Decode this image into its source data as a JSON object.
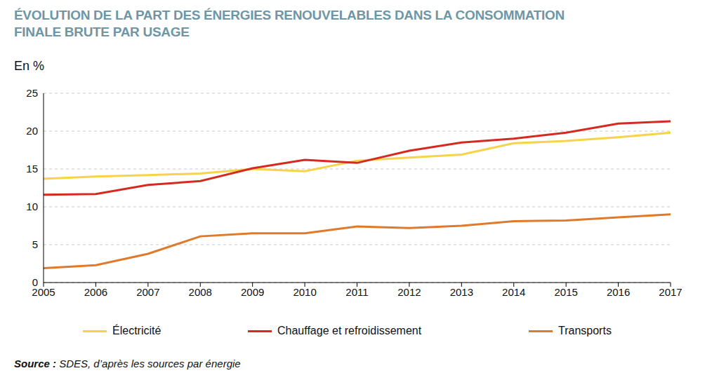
{
  "chart_data": {
    "type": "line",
    "title": "ÉVOLUTION DE LA PART DES ÉNERGIES RENOUVELABLES DANS LA CONSOMMATION FINALE BRUTE PAR USAGE",
    "ylabel": "En %",
    "note": "Source : SDES, d’après les sources par énergie",
    "x": [
      2005,
      2006,
      2007,
      2008,
      2009,
      2010,
      2011,
      2012,
      2013,
      2014,
      2015,
      2016,
      2017
    ],
    "xlim": [
      2005,
      2017
    ],
    "xticks": [
      2005,
      2006,
      2007,
      2008,
      2009,
      2010,
      2011,
      2012,
      2013,
      2014,
      2015,
      2016,
      2017
    ],
    "ylim": [
      0,
      25
    ],
    "yticks": [
      0,
      5,
      10,
      15,
      20,
      25
    ],
    "grid": true,
    "legend": "bottom",
    "series": [
      {
        "name": "Électricité",
        "color": "#f7d34a",
        "values": [
          13.7,
          14.0,
          14.2,
          14.4,
          15.0,
          14.7,
          16.1,
          16.5,
          16.9,
          18.4,
          18.7,
          19.2,
          19.8
        ]
      },
      {
        "name": "Chauffage et refroidissement",
        "color": "#d42a1f",
        "values": [
          11.6,
          11.7,
          12.9,
          13.4,
          15.1,
          16.2,
          15.8,
          17.4,
          18.5,
          19.0,
          19.8,
          21.0,
          21.3
        ]
      },
      {
        "name": "Transports",
        "color": "#e07a2b",
        "values": [
          1.9,
          2.3,
          3.8,
          6.1,
          6.5,
          6.5,
          7.4,
          7.2,
          7.5,
          8.1,
          8.2,
          8.6,
          9.0
        ]
      }
    ]
  }
}
